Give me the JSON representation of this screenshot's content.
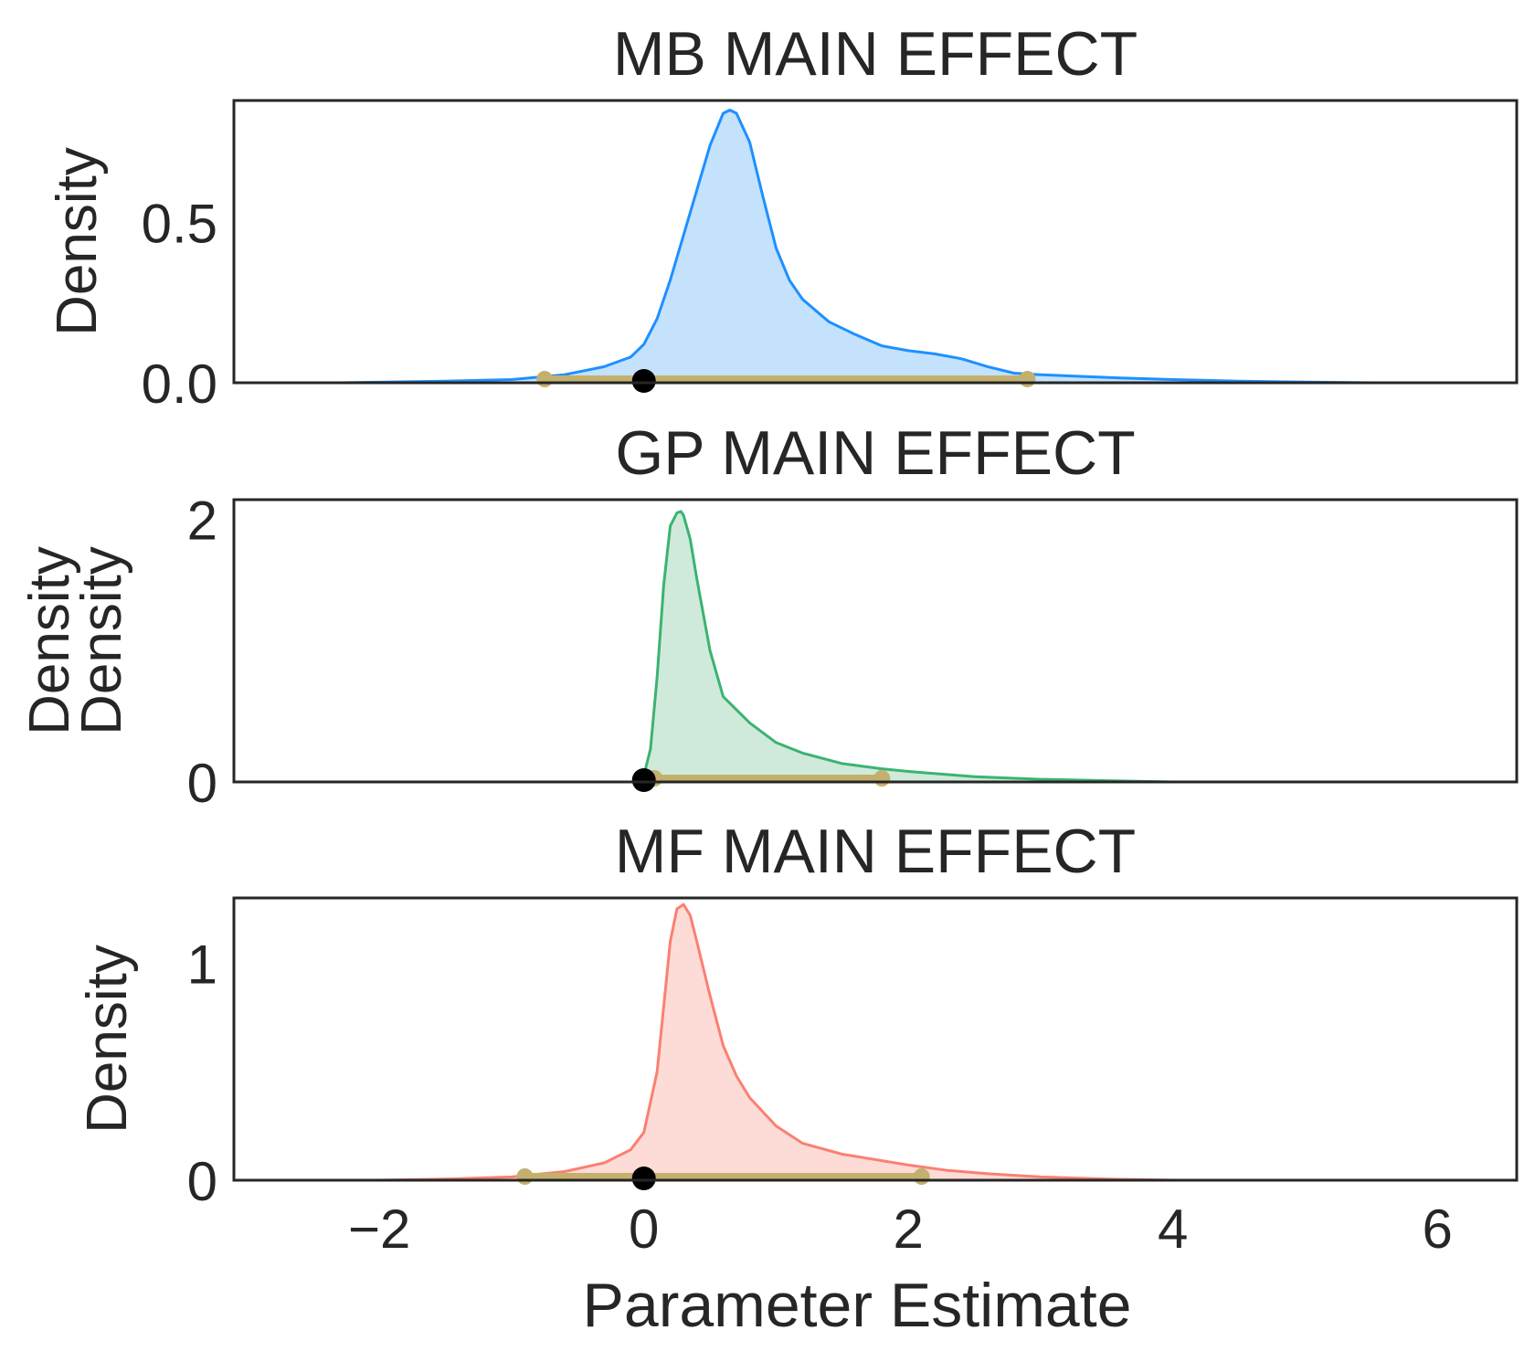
{
  "chart_data": [
    {
      "type": "area",
      "title": "MB MAIN EFFECT",
      "xlabel": "",
      "ylabel": "Density",
      "ylabel_lines": [
        "Density"
      ],
      "xlim": [
        -3.1,
        6.6
      ],
      "ylim": [
        0,
        0.88
      ],
      "yticks": [
        0.0,
        0.5
      ],
      "ytick_labels": [
        "0.0",
        "0.5"
      ],
      "xticks_shown": false,
      "grid": false,
      "line_color": "#1e90ff",
      "fill_color": "#c4e2fc",
      "series": [
        {
          "x": [
            -2.3,
            -1.5,
            -1.0,
            -0.6,
            -0.3,
            -0.1,
            0.0,
            0.1,
            0.2,
            0.3,
            0.4,
            0.5,
            0.6,
            0.65,
            0.7,
            0.8,
            0.9,
            1.0,
            1.1,
            1.2,
            1.4,
            1.6,
            1.8,
            2.0,
            2.2,
            2.4,
            2.6,
            2.8,
            3.0,
            3.3,
            3.6,
            4.0,
            4.5,
            5.0,
            5.5
          ],
          "y": [
            0.0,
            0.005,
            0.01,
            0.025,
            0.05,
            0.08,
            0.12,
            0.2,
            0.32,
            0.46,
            0.6,
            0.74,
            0.84,
            0.85,
            0.84,
            0.75,
            0.58,
            0.42,
            0.32,
            0.26,
            0.19,
            0.15,
            0.115,
            0.1,
            0.09,
            0.075,
            0.05,
            0.03,
            0.025,
            0.02,
            0.015,
            0.01,
            0.005,
            0.002,
            0.0
          ]
        }
      ],
      "interval": [
        -0.75,
        2.9
      ],
      "marker_x": 0.0
    },
    {
      "type": "area",
      "title": "GP MAIN EFFECT",
      "xlabel": "",
      "ylabel": "Density",
      "ylabel_lines": [
        "Density",
        "Density"
      ],
      "xlim": [
        -3.1,
        6.6
      ],
      "ylim": [
        0,
        2.15
      ],
      "yticks": [
        0,
        2
      ],
      "ytick_labels": [
        "0",
        "2"
      ],
      "xticks_shown": false,
      "grid": false,
      "line_color": "#3cb371",
      "fill_color": "#cfeadb",
      "series": [
        {
          "x": [
            -0.05,
            0.0,
            0.05,
            0.1,
            0.15,
            0.2,
            0.25,
            0.28,
            0.3,
            0.35,
            0.4,
            0.5,
            0.6,
            0.8,
            1.0,
            1.2,
            1.5,
            1.8,
            2.0,
            2.5,
            3.0,
            3.5,
            4.0
          ],
          "y": [
            0.0,
            0.05,
            0.25,
            0.8,
            1.5,
            1.95,
            2.05,
            2.06,
            2.03,
            1.85,
            1.55,
            1.0,
            0.65,
            0.45,
            0.3,
            0.22,
            0.14,
            0.1,
            0.08,
            0.04,
            0.02,
            0.01,
            0.0
          ]
        }
      ],
      "interval": [
        0.08,
        1.8
      ],
      "marker_x": 0.0
    },
    {
      "type": "area",
      "title": "MF MAIN EFFECT",
      "xlabel": "Parameter Estimate",
      "ylabel": "Density",
      "ylabel_lines": [
        "Density"
      ],
      "xlim": [
        -3.1,
        6.6
      ],
      "ylim": [
        0,
        1.3
      ],
      "yticks": [
        0,
        1
      ],
      "ytick_labels": [
        "0",
        "1"
      ],
      "xticks": [
        -2,
        0,
        2,
        4,
        6
      ],
      "xtick_labels": [
        "−2",
        "0",
        "2",
        "4",
        "6"
      ],
      "xticks_shown": true,
      "grid": false,
      "line_color": "#fa8072",
      "fill_color": "#fddcd7",
      "series": [
        {
          "x": [
            -2.0,
            -1.5,
            -1.0,
            -0.6,
            -0.3,
            -0.1,
            0.0,
            0.1,
            0.15,
            0.2,
            0.25,
            0.3,
            0.35,
            0.4,
            0.5,
            0.6,
            0.7,
            0.8,
            1.0,
            1.2,
            1.5,
            1.8,
            2.0,
            2.3,
            2.6,
            3.0,
            3.5,
            4.0
          ],
          "y": [
            0.0,
            0.005,
            0.015,
            0.04,
            0.08,
            0.14,
            0.22,
            0.5,
            0.8,
            1.1,
            1.25,
            1.27,
            1.22,
            1.1,
            0.85,
            0.62,
            0.48,
            0.38,
            0.25,
            0.17,
            0.12,
            0.09,
            0.07,
            0.045,
            0.03,
            0.015,
            0.005,
            0.0
          ]
        }
      ],
      "interval": [
        -0.9,
        2.1
      ],
      "marker_x": 0.0
    }
  ],
  "colors": {
    "interval": "#c4b06e",
    "marker": "#000000",
    "frame": "#262626",
    "text": "#262626"
  }
}
